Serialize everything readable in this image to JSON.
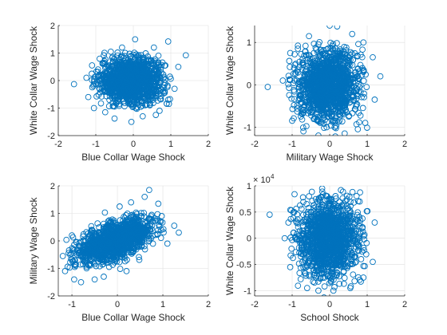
{
  "chart_data": [
    {
      "type": "scatter",
      "xlabel": "Blue Collar Wage Shock",
      "ylabel": "White Collar Wage Shock",
      "xlim": [
        -2,
        2
      ],
      "ylim": [
        -2,
        2
      ],
      "xticks": [
        -2,
        -1,
        0,
        1,
        2
      ],
      "yticks": [
        -2,
        -1,
        0,
        1,
        2
      ],
      "xtick_labels": [
        "-2",
        "-1",
        "0",
        "1",
        "2"
      ],
      "ytick_labels": [
        "-2",
        "-1",
        "0",
        "1",
        "2"
      ],
      "grid": true,
      "marker": "circle",
      "color": "#0072bd",
      "points": [
        [
          -1.58,
          -0.13
        ],
        [
          1.4,
          0.92
        ],
        [
          0.05,
          1.5
        ],
        [
          0.93,
          1.42
        ],
        [
          -0.5,
          -1.38
        ],
        [
          -0.05,
          -1.5
        ],
        [
          -1.05,
          -1.0
        ],
        [
          -1.2,
          -0.6
        ],
        [
          0.95,
          -0.85
        ],
        [
          0.7,
          -1.1
        ],
        [
          1.2,
          0.5
        ],
        [
          0.55,
          1.2
        ],
        [
          -0.6,
          1.05
        ],
        [
          -1.1,
          0.55
        ],
        [
          0.25,
          -1.3
        ],
        [
          -0.3,
          1.2
        ],
        [
          1.1,
          -0.3
        ],
        [
          -1.25,
          0.1
        ],
        [
          0.6,
          -1.25
        ],
        [
          -0.75,
          -1.15
        ]
      ],
      "cloud": {
        "center": [
          -0.05,
          0.0
        ],
        "spread": [
          0.42,
          0.42
        ],
        "correlation": 0.0
      }
    },
    {
      "type": "scatter",
      "xlabel": "Military Wage Shock",
      "ylabel": "White Collar Wage Shock",
      "xlim": [
        -2,
        2
      ],
      "ylim": [
        -1.2,
        1.4
      ],
      "xticks": [
        -2,
        -1,
        0,
        1,
        2
      ],
      "yticks": [
        -1,
        0,
        1
      ],
      "xtick_labels": [
        "-2",
        "-1",
        "0",
        "1",
        "2"
      ],
      "ytick_labels": [
        "-1",
        "0",
        "1"
      ],
      "grid": true,
      "marker": "circle",
      "color": "#0072bd",
      "points": [
        [
          -1.65,
          -0.05
        ],
        [
          0.0,
          1.4
        ],
        [
          0.2,
          1.38
        ],
        [
          1.35,
          0.2
        ],
        [
          1.2,
          -0.35
        ],
        [
          -0.3,
          -1.2
        ],
        [
          0.15,
          -1.22
        ],
        [
          0.9,
          1.0
        ],
        [
          0.75,
          -1.05
        ],
        [
          -1.0,
          -0.85
        ],
        [
          -1.05,
          0.75
        ],
        [
          -0.55,
          1.15
        ],
        [
          0.6,
          1.2
        ],
        [
          1.15,
          0.65
        ],
        [
          -1.25,
          0.1
        ],
        [
          0.95,
          -0.9
        ],
        [
          0.4,
          -1.15
        ],
        [
          -0.7,
          -1.1
        ]
      ],
      "cloud": {
        "center": [
          -0.05,
          0.0
        ],
        "spread": [
          0.42,
          0.42
        ],
        "correlation": 0.0
      }
    },
    {
      "type": "scatter",
      "xlabel": "Blue Collar Wage Shock",
      "ylabel": "Military Wage Shock",
      "xlim": [
        -1.3,
        2
      ],
      "ylim": [
        -2,
        2
      ],
      "xticks": [
        -1,
        0,
        1,
        2
      ],
      "yticks": [
        -2,
        -1,
        0,
        1,
        2
      ],
      "xtick_labels": [
        "-1",
        "0",
        "1",
        "2"
      ],
      "ytick_labels": [
        "-2",
        "-1",
        "0",
        "1",
        "2"
      ],
      "grid": true,
      "marker": "circle",
      "color": "#0072bd",
      "points": [
        [
          0.7,
          1.85
        ],
        [
          0.6,
          1.6
        ],
        [
          1.35,
          0.3
        ],
        [
          1.25,
          0.55
        ],
        [
          -1.2,
          -0.55
        ],
        [
          -1.15,
          -1.1
        ],
        [
          -0.95,
          -1.4
        ],
        [
          -0.8,
          -1.5
        ],
        [
          -0.5,
          -1.4
        ],
        [
          0.3,
          1.4
        ],
        [
          0.9,
          1.35
        ],
        [
          -0.3,
          -1.3
        ],
        [
          1.1,
          -0.1
        ],
        [
          -1.0,
          0.2
        ],
        [
          0.2,
          -1.1
        ],
        [
          0.05,
          1.25
        ]
      ],
      "cloud": {
        "center": [
          -0.05,
          0.0
        ],
        "spread": [
          0.42,
          0.42
        ],
        "correlation": 0.6
      }
    },
    {
      "type": "scatter",
      "xlabel": "School Shock",
      "ylabel": "White Collar Wage Shock",
      "y_exponent_label": "× 10",
      "y_exponent": "4",
      "xlim": [
        -2,
        2
      ],
      "ylim": [
        -1.1,
        1.0
      ],
      "xticks": [
        -2,
        -1,
        0,
        1,
        2
      ],
      "yticks": [
        -1,
        -0.5,
        0,
        0.5,
        1
      ],
      "xtick_labels": [
        "-2",
        "-1",
        "0",
        "1",
        "2"
      ],
      "ytick_labels": [
        "-1",
        "-0.5",
        "0",
        "0.5",
        "1"
      ],
      "grid": true,
      "marker": "circle",
      "color": "#0072bd",
      "points": [
        [
          -1.6,
          0.45
        ],
        [
          -0.15,
          -1.13
        ],
        [
          -0.2,
          0.95
        ],
        [
          0.3,
          0.92
        ],
        [
          1.2,
          0.3
        ],
        [
          1.15,
          -0.45
        ],
        [
          -0.6,
          -0.95
        ],
        [
          0.1,
          -1.0
        ],
        [
          -1.05,
          -0.55
        ],
        [
          -1.1,
          0.3
        ],
        [
          0.8,
          0.7
        ],
        [
          -0.55,
          0.8
        ],
        [
          0.9,
          -0.75
        ],
        [
          0.55,
          -0.95
        ],
        [
          -0.3,
          -1.0
        ],
        [
          -1.2,
          0.0
        ]
      ],
      "cloud": {
        "center": [
          -0.05,
          0.0
        ],
        "spread": [
          0.42,
          0.38
        ],
        "correlation": 0.0
      }
    }
  ]
}
